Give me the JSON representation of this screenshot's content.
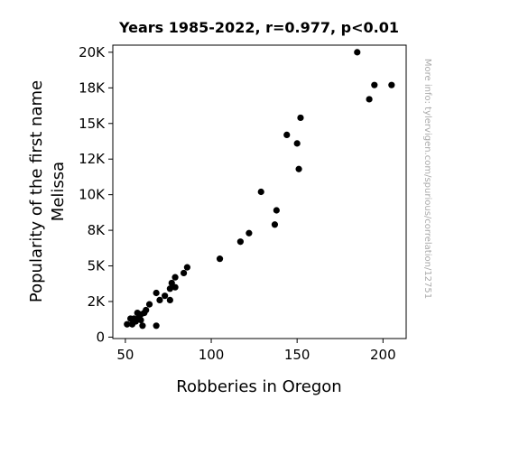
{
  "chart_data": {
    "type": "scatter",
    "title": "Years 1985-2022, r=0.977, p<0.01",
    "xlabel": "Robberies in Oregon",
    "ylabel_lines": [
      "Popularity of the first name",
      "Melissa"
    ],
    "watermark": "More info: tylervigen.com/spurious/correlation/12751",
    "xlim": [
      42.7,
      213.5
    ],
    "ylim": [
      -100,
      20500
    ],
    "x_ticks": [
      50,
      100,
      150,
      200
    ],
    "x_tick_labels": [
      "50",
      "100",
      "150",
      "200"
    ],
    "y_ticks": [
      0,
      2500,
      5000,
      7500,
      10000,
      12500,
      15000,
      17500,
      20000
    ],
    "y_tick_labels": [
      "0",
      "2K",
      "5K",
      "8K",
      "10K",
      "12K",
      "15K",
      "18K",
      "20K"
    ],
    "grid": false,
    "point_color": "#000000",
    "points": [
      [
        185,
        20000
      ],
      [
        195,
        17700
      ],
      [
        205,
        17700
      ],
      [
        192,
        16700
      ],
      [
        152,
        15400
      ],
      [
        144,
        14200
      ],
      [
        150,
        13600
      ],
      [
        151,
        11800
      ],
      [
        129,
        10200
      ],
      [
        138,
        8900
      ],
      [
        137,
        7900
      ],
      [
        122,
        7300
      ],
      [
        117,
        6700
      ],
      [
        105,
        5500
      ],
      [
        86,
        4900
      ],
      [
        84,
        4500
      ],
      [
        79,
        4200
      ],
      [
        77,
        3800
      ],
      [
        79,
        3500
      ],
      [
        76,
        3400
      ],
      [
        73,
        2900
      ],
      [
        68,
        3100
      ],
      [
        76,
        2600
      ],
      [
        70,
        2600
      ],
      [
        64,
        2300
      ],
      [
        62,
        1900
      ],
      [
        61,
        1700
      ],
      [
        59,
        1600
      ],
      [
        57,
        1700
      ],
      [
        58,
        1400
      ],
      [
        55,
        1300
      ],
      [
        53,
        1300
      ],
      [
        56,
        1100
      ],
      [
        59,
        1200
      ],
      [
        54,
        900
      ],
      [
        51,
        900
      ],
      [
        60,
        800
      ],
      [
        68,
        800
      ]
    ]
  }
}
